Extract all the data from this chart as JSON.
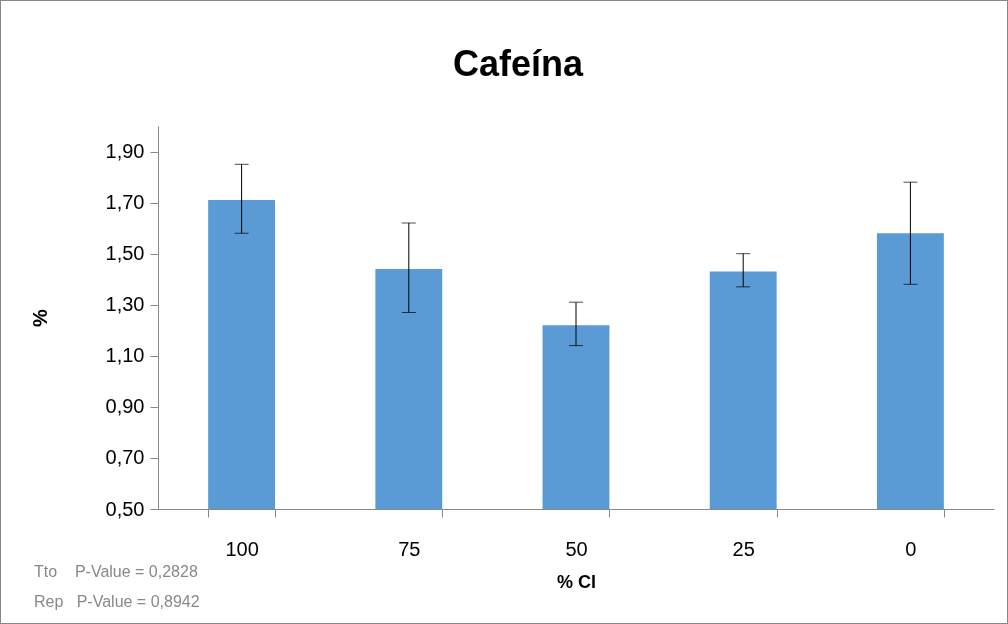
{
  "chart_data": {
    "type": "bar",
    "title": "Cafeína",
    "xlabel": "% Cl",
    "ylabel": "%",
    "categories": [
      "100",
      "75",
      "50",
      "25",
      "0"
    ],
    "values": [
      1.71,
      1.44,
      1.22,
      1.43,
      1.58
    ],
    "errors": [
      [
        1.58,
        1.85
      ],
      [
        1.27,
        1.62
      ],
      [
        1.14,
        1.31
      ],
      [
        1.37,
        1.5
      ],
      [
        1.38,
        1.78
      ]
    ],
    "color": "#5b9bd5",
    "ylim": [
      0.5,
      2.0
    ],
    "yticks": [
      {
        "value": 0.5,
        "label": "0,50"
      },
      {
        "value": 0.7,
        "label": "0,70"
      },
      {
        "value": 0.9,
        "label": "0,90"
      },
      {
        "value": 1.1,
        "label": "1,10"
      },
      {
        "value": 1.3,
        "label": "1,30"
      },
      {
        "value": 1.5,
        "label": "1,50"
      },
      {
        "value": 1.7,
        "label": "1,70"
      },
      {
        "value": 1.9,
        "label": "1,90"
      }
    ],
    "grid": false,
    "annotations": [
      "Tto    P-Value = 0,2828",
      "Rep   P-Value = 0,8942"
    ]
  }
}
